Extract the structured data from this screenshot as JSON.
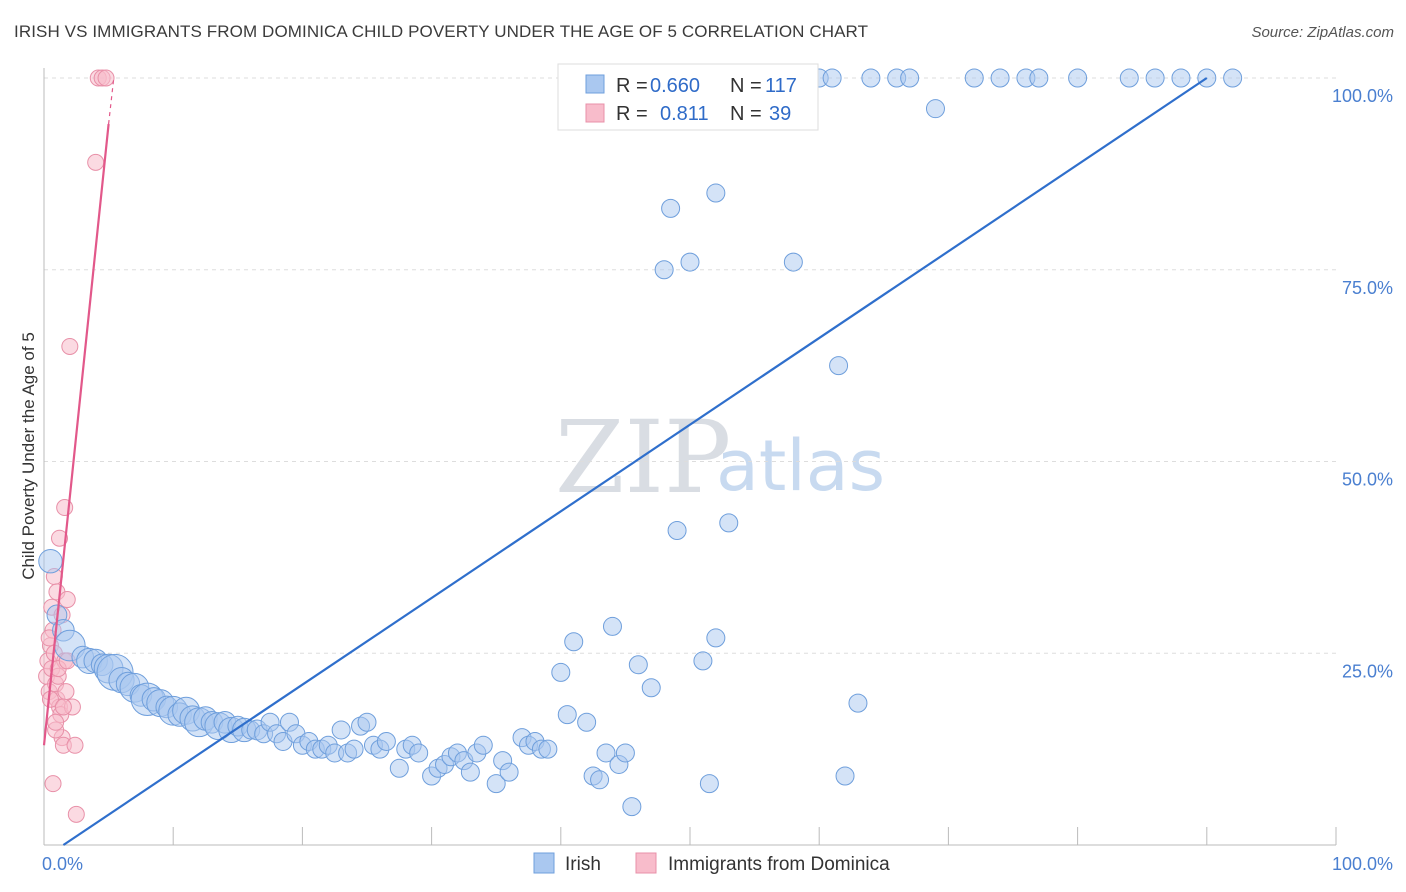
{
  "header": {
    "title": "IRISH VS IMMIGRANTS FROM DOMINICA CHILD POVERTY UNDER THE AGE OF 5 CORRELATION CHART",
    "source": "Source: ZipAtlas.com"
  },
  "watermark": {
    "part1": "ZIP",
    "part2": "atlas"
  },
  "colors": {
    "irish_fill": "#aac8f0",
    "irish_stroke": "#6f9fdc",
    "irish_line": "#2f6fcc",
    "dominica_fill": "#f8bccb",
    "dominica_stroke": "#e890a8",
    "dominica_line": "#e2588a",
    "grid": "#dddddd",
    "tick_text": "#4a7fd0"
  },
  "legend": {
    "rows": [
      {
        "r_label": "R =",
        "r_value": "0.660",
        "n_label": "N =",
        "n_value": "117"
      },
      {
        "r_label": "R =",
        "r_value": "0.811",
        "n_label": "N =",
        "n_value": "39"
      }
    ]
  },
  "bottom_legend": {
    "items": [
      "Irish",
      "Immigrants from Dominica"
    ]
  },
  "chart_data": {
    "type": "scatter",
    "title": "IRISH VS IMMIGRANTS FROM DOMINICA CHILD POVERTY UNDER THE AGE OF 5 CORRELATION CHART",
    "xlabel": "",
    "ylabel": "Child Poverty Under the Age of 5",
    "xlim": [
      0,
      100
    ],
    "ylim": [
      0,
      100
    ],
    "x_tick_labels": [
      "0.0%",
      "100.0%"
    ],
    "y_tick_labels": [
      "25.0%",
      "50.0%",
      "75.0%",
      "100.0%"
    ],
    "y_ticks": [
      25,
      50,
      75,
      100
    ],
    "grid": true,
    "legend_position": "top-center",
    "series": [
      {
        "name": "Irish",
        "r": 0.66,
        "n": 117,
        "trend": {
          "x": [
            1.5,
            90
          ],
          "y": [
            0,
            100
          ]
        },
        "points": [
          [
            0.5,
            37,
            1.3
          ],
          [
            1,
            30,
            1.1
          ],
          [
            1.5,
            28,
            1.2
          ],
          [
            2,
            26,
            1.7
          ],
          [
            3,
            24.5,
            1.2
          ],
          [
            3.5,
            24,
            1.4
          ],
          [
            4,
            24,
            1.3
          ],
          [
            4.5,
            23.5,
            1.2
          ],
          [
            5,
            23,
            1.6
          ],
          [
            5.5,
            22.5,
            2
          ],
          [
            6,
            21.5,
            1.4
          ],
          [
            6.5,
            21,
            1.3
          ],
          [
            7,
            20.5,
            1.6
          ],
          [
            7.5,
            19.5,
            1.2
          ],
          [
            8,
            19,
            1.8
          ],
          [
            8.5,
            19,
            1.3
          ],
          [
            9,
            18.5,
            1.5
          ],
          [
            9.5,
            18,
            1.2
          ],
          [
            10,
            17.5,
            1.6
          ],
          [
            10.5,
            17,
            1.3
          ],
          [
            11,
            17.5,
            1.5
          ],
          [
            11.5,
            16.5,
            1.4
          ],
          [
            12,
            16,
            1.6
          ],
          [
            12.5,
            16.5,
            1.3
          ],
          [
            13,
            16,
            1.2
          ],
          [
            13.5,
            15.5,
            1.5
          ],
          [
            14,
            16,
            1.2
          ],
          [
            14.5,
            15,
            1.4
          ],
          [
            15,
            15.5,
            1.1
          ],
          [
            15.5,
            15,
            1.3
          ],
          [
            16,
            15,
            1.0
          ],
          [
            16.5,
            15,
            1.1
          ],
          [
            17,
            14.5,
            1.0
          ],
          [
            17.5,
            16,
            1.0
          ],
          [
            18,
            14.5,
            1.0
          ],
          [
            18.5,
            13.5,
            1.0
          ],
          [
            19,
            16,
            1.0
          ],
          [
            19.5,
            14.5,
            1.0
          ],
          [
            20,
            13,
            1.0
          ],
          [
            20.5,
            13.5,
            1.0
          ],
          [
            21,
            12.5,
            1.0
          ],
          [
            21.5,
            12.5,
            1.0
          ],
          [
            22,
            13,
            1.0
          ],
          [
            22.5,
            12,
            1.0
          ],
          [
            23,
            15,
            1.0
          ],
          [
            23.5,
            12,
            1.0
          ],
          [
            24,
            12.5,
            1.0
          ],
          [
            24.5,
            15.5,
            1.0
          ],
          [
            25,
            16,
            1.0
          ],
          [
            25.5,
            13,
            1.0
          ],
          [
            26,
            12.5,
            1.0
          ],
          [
            26.5,
            13.5,
            1.0
          ],
          [
            27.5,
            10,
            1.0
          ],
          [
            28,
            12.5,
            1.0
          ],
          [
            28.5,
            13,
            1.0
          ],
          [
            29,
            12,
            1.0
          ],
          [
            30,
            9,
            1.0
          ],
          [
            30.5,
            10,
            1.0
          ],
          [
            31,
            10.5,
            1.0
          ],
          [
            31.5,
            11.5,
            1.0
          ],
          [
            32,
            12,
            1.0
          ],
          [
            32.5,
            11,
            1.0
          ],
          [
            33,
            9.5,
            1.0
          ],
          [
            33.5,
            12,
            1.0
          ],
          [
            34,
            13,
            1.0
          ],
          [
            35,
            8,
            1.0
          ],
          [
            35.5,
            11,
            1.0
          ],
          [
            36,
            9.5,
            1.0
          ],
          [
            37,
            14,
            1.0
          ],
          [
            37.5,
            13,
            1.0
          ],
          [
            38,
            13.5,
            1.0
          ],
          [
            38.5,
            12.5,
            1.0
          ],
          [
            39,
            12.5,
            1.0
          ],
          [
            40,
            22.5,
            1.0
          ],
          [
            40.5,
            17,
            1.0
          ],
          [
            41,
            26.5,
            1.0
          ],
          [
            42,
            16,
            1.0
          ],
          [
            42.5,
            9,
            1.0
          ],
          [
            43,
            8.5,
            1.0
          ],
          [
            43.5,
            12,
            1.0
          ],
          [
            44,
            28.5,
            1.0
          ],
          [
            44.5,
            10.5,
            1.0
          ],
          [
            45,
            12,
            1.0
          ],
          [
            45.5,
            5,
            1.0
          ],
          [
            46,
            23.5,
            1.0
          ],
          [
            47,
            20.5,
            1.0
          ],
          [
            48,
            75,
            1.0
          ],
          [
            48.5,
            83,
            1.0
          ],
          [
            49,
            41,
            1.0
          ],
          [
            50,
            76,
            1.0
          ],
          [
            51,
            24,
            1.0
          ],
          [
            51.5,
            8,
            1.0
          ],
          [
            52,
            27,
            1.0
          ],
          [
            52,
            85,
            1.0
          ],
          [
            53,
            42,
            1.0
          ],
          [
            54,
            100,
            1.0
          ],
          [
            56,
            100,
            1.0
          ],
          [
            57,
            100,
            1.0
          ],
          [
            58,
            76,
            1.0
          ],
          [
            60,
            100,
            1.0
          ],
          [
            61,
            100,
            1.0
          ],
          [
            61.5,
            62.5,
            1.0
          ],
          [
            62,
            9,
            1.0
          ],
          [
            63,
            18.5,
            1.0
          ],
          [
            64,
            100,
            1.0
          ],
          [
            66,
            100,
            1.0
          ],
          [
            67,
            100,
            1.0
          ],
          [
            69,
            96,
            1.0
          ],
          [
            72,
            100,
            1.0
          ],
          [
            74,
            100,
            1.0
          ],
          [
            76,
            100,
            1.0
          ],
          [
            77,
            100,
            1.0
          ],
          [
            80,
            100,
            1.0
          ],
          [
            84,
            100,
            1.0
          ],
          [
            86,
            100,
            1.0
          ],
          [
            88,
            100,
            1.0
          ],
          [
            90,
            100,
            1.0
          ],
          [
            92,
            100,
            1.0
          ]
        ]
      },
      {
        "name": "Immigrants from Dominica",
        "r": 0.811,
        "n": 39,
        "trend": {
          "x": [
            0,
            5
          ],
          "y": [
            13,
            94
          ]
        },
        "points": [
          [
            0.2,
            22,
            1
          ],
          [
            0.3,
            24,
            1
          ],
          [
            0.4,
            20,
            1
          ],
          [
            0.5,
            26,
            1
          ],
          [
            0.6,
            23,
            1
          ],
          [
            0.7,
            28,
            1
          ],
          [
            0.8,
            25,
            1
          ],
          [
            0.9,
            21,
            1
          ],
          [
            1.0,
            19,
            1
          ],
          [
            1.1,
            22,
            1
          ],
          [
            1.2,
            18,
            1
          ],
          [
            1.3,
            17,
            1
          ],
          [
            1.4,
            14,
            1
          ],
          [
            1.5,
            13,
            1
          ],
          [
            1.6,
            24,
            1
          ],
          [
            1.7,
            20,
            1
          ],
          [
            0.6,
            31,
            1
          ],
          [
            0.8,
            35,
            1
          ],
          [
            1.0,
            33,
            1
          ],
          [
            1.2,
            40,
            1
          ],
          [
            1.4,
            30,
            1
          ],
          [
            1.6,
            44,
            1
          ],
          [
            1.8,
            32,
            1
          ],
          [
            2.0,
            65,
            1
          ],
          [
            2.2,
            18,
            1
          ],
          [
            2.4,
            13,
            1
          ],
          [
            2.5,
            4,
            1
          ],
          [
            0.7,
            8,
            1
          ],
          [
            0.9,
            15,
            1
          ],
          [
            1.1,
            23,
            1
          ],
          [
            0.4,
            27,
            1
          ],
          [
            0.5,
            19,
            1
          ],
          [
            1.5,
            18,
            1
          ],
          [
            1.8,
            24,
            1
          ],
          [
            0.9,
            16,
            1
          ],
          [
            4.0,
            89,
            1
          ],
          [
            4.2,
            100,
            1
          ],
          [
            4.5,
            100,
            1
          ],
          [
            4.8,
            100,
            1
          ]
        ]
      }
    ]
  }
}
